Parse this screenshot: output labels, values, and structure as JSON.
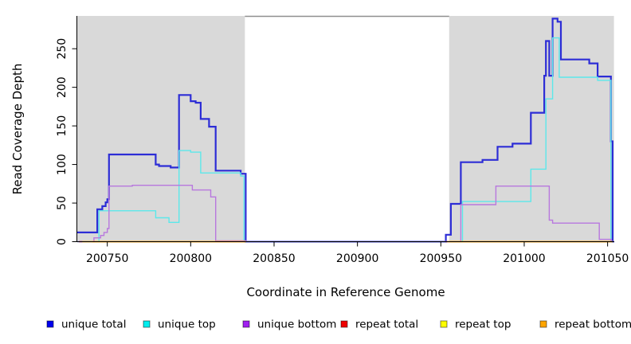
{
  "chart_data": {
    "type": "line",
    "step": true,
    "title": "",
    "xlabel": "Coordinate in Reference Genome",
    "ylabel": "Read Coverage Depth",
    "xlim": [
      200732,
      201054
    ],
    "ylim": [
      0,
      293
    ],
    "x_ticks": [
      200750,
      200800,
      200850,
      200900,
      200950,
      201000,
      201050
    ],
    "y_ticks": [
      0,
      50,
      100,
      150,
      200,
      250
    ],
    "grid": false,
    "legend_position": "bottom",
    "shaded_regions": [
      {
        "name": "left-repeat-region",
        "x0": 200732,
        "x1": 200832.5,
        "color": "#d9d9d9"
      },
      {
        "name": "right-repeat-region",
        "x0": 200955,
        "x1": 201053.8,
        "color": "#d9d9d9"
      }
    ],
    "gap_top_border": {
      "x0": 200832.5,
      "x1": 200955,
      "color": "#8f8f8f"
    },
    "series": [
      {
        "name": "unique total",
        "color": "#2d2dd6",
        "line_width": 2.2,
        "segments": [
          [
            [
              200732,
              12
            ],
            [
              200744,
              42
            ],
            [
              200747,
              46
            ],
            [
              200749,
              51
            ],
            [
              200750,
              55
            ],
            [
              200751,
              113
            ],
            [
              200779,
              100
            ],
            [
              200781,
              98
            ],
            [
              200788,
              96
            ],
            [
              200793,
              190
            ],
            [
              200800,
              182
            ],
            [
              200803,
              180
            ],
            [
              200806,
              159
            ],
            [
              200811,
              149
            ],
            [
              200815,
              92
            ],
            [
              200830,
              88
            ],
            [
              200833,
              0
            ],
            [
              200953,
              9
            ],
            [
              200956,
              49
            ],
            [
              200962,
              103
            ],
            [
              200975,
              106
            ],
            [
              200984,
              123
            ],
            [
              200993,
              127
            ],
            [
              201004,
              167
            ],
            [
              201012,
              215
            ],
            [
              201013,
              260
            ],
            [
              201015,
              215
            ],
            [
              201017,
              289
            ],
            [
              201020,
              285
            ],
            [
              201022,
              236
            ],
            [
              201039,
              231
            ],
            [
              201044,
              214
            ],
            [
              201052,
              130
            ],
            [
              201053,
              0
            ],
            [
              201054,
              0
            ]
          ]
        ]
      },
      {
        "name": "unique top",
        "color": "#5ce8ea",
        "line_width": 1.4,
        "segments": [
          [
            [
              200732,
              0
            ],
            [
              200745,
              40
            ],
            [
              200779,
              31
            ],
            [
              200787,
              25
            ],
            [
              200793,
              118
            ],
            [
              200800,
              116
            ],
            [
              200806,
              89
            ],
            [
              200830,
              85
            ],
            [
              200832,
              0
            ],
            [
              200963,
              52
            ],
            [
              201004,
              94
            ],
            [
              201013,
              185
            ],
            [
              201017,
              264
            ],
            [
              201021,
              213
            ],
            [
              201044,
              209
            ],
            [
              201052,
              0
            ],
            [
              201054,
              0
            ]
          ]
        ]
      },
      {
        "name": "unique bottom",
        "color": "#b878de",
        "line_width": 1.4,
        "segments": [
          [
            [
              200732,
              0
            ],
            [
              200742,
              5
            ],
            [
              200746,
              8
            ],
            [
              200748,
              12
            ],
            [
              200750,
              17
            ],
            [
              200751,
              72
            ],
            [
              200765,
              73
            ],
            [
              200801,
              67
            ],
            [
              200812,
              58
            ],
            [
              200815,
              1
            ],
            [
              200833,
              0
            ],
            [
              200962,
              48
            ],
            [
              200983,
              72
            ],
            [
              201015,
              28
            ],
            [
              201017,
              24
            ],
            [
              201045,
              3
            ],
            [
              201052,
              0
            ],
            [
              201054,
              0
            ]
          ]
        ]
      },
      {
        "name": "repeat total",
        "color": "#cc2233",
        "line_width": 1.4,
        "segments": [
          [
            [
              200733,
              0
            ],
            [
              200833,
              0
            ]
          ],
          [
            [
              200953,
              0
            ],
            [
              201053,
              0
            ]
          ]
        ]
      },
      {
        "name": "repeat top",
        "color": "#ffee00",
        "line_width": 1.4,
        "segments": [
          [
            [
              200735,
              0
            ],
            [
              200833,
              0
            ]
          ],
          [
            [
              200954,
              0
            ],
            [
              201053,
              0
            ]
          ]
        ]
      },
      {
        "name": "repeat bottom",
        "color": "#ff9500",
        "line_width": 1.6,
        "segments": [
          [
            [
              200741,
              0
            ],
            [
              200833,
              0
            ]
          ],
          [
            [
              200955,
              0
            ],
            [
              201052,
              0
            ]
          ]
        ]
      }
    ],
    "legend": [
      {
        "label": "unique total",
        "fill": "#0000ee"
      },
      {
        "label": "unique top",
        "fill": "#00eeee"
      },
      {
        "label": "unique bottom",
        "fill": "#a020f0"
      },
      {
        "label": "repeat total",
        "fill": "#ee0000"
      },
      {
        "label": "repeat top",
        "fill": "#ffff00"
      },
      {
        "label": "repeat bottom",
        "fill": "#ffa500"
      }
    ]
  }
}
